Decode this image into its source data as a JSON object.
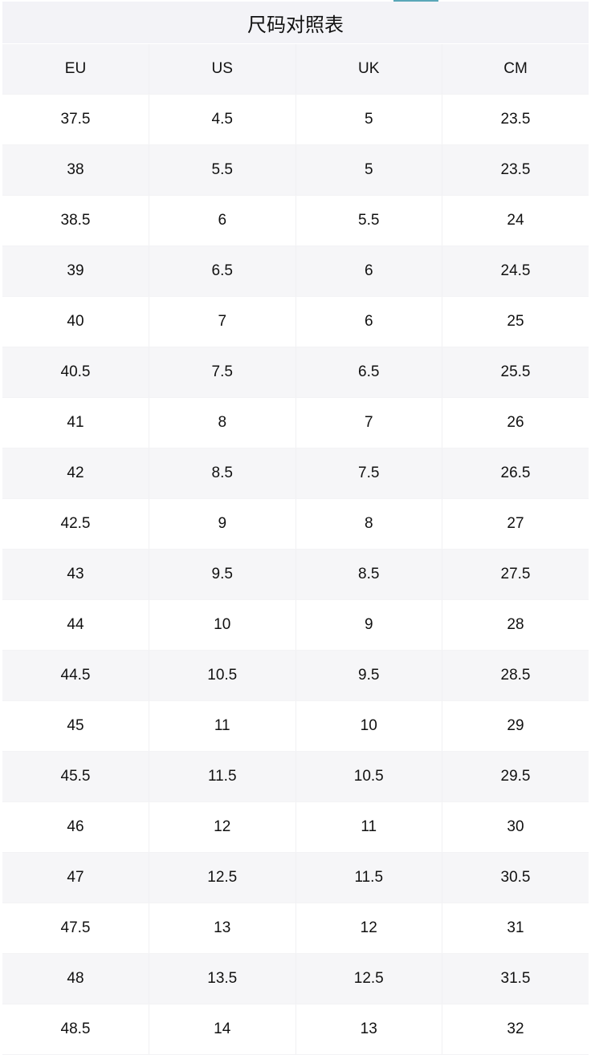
{
  "title": "尺码对照表",
  "accent_color": "#5aa7b8",
  "headers": [
    "EU",
    "US",
    "UK",
    "CM"
  ],
  "rows": [
    [
      "37.5",
      "4.5",
      "5",
      "23.5"
    ],
    [
      "38",
      "5.5",
      "5",
      "23.5"
    ],
    [
      "38.5",
      "6",
      "5.5",
      "24"
    ],
    [
      "39",
      "6.5",
      "6",
      "24.5"
    ],
    [
      "40",
      "7",
      "6",
      "25"
    ],
    [
      "40.5",
      "7.5",
      "6.5",
      "25.5"
    ],
    [
      "41",
      "8",
      "7",
      "26"
    ],
    [
      "42",
      "8.5",
      "7.5",
      "26.5"
    ],
    [
      "42.5",
      "9",
      "8",
      "27"
    ],
    [
      "43",
      "9.5",
      "8.5",
      "27.5"
    ],
    [
      "44",
      "10",
      "9",
      "28"
    ],
    [
      "44.5",
      "10.5",
      "9.5",
      "28.5"
    ],
    [
      "45",
      "11",
      "10",
      "29"
    ],
    [
      "45.5",
      "11.5",
      "10.5",
      "29.5"
    ],
    [
      "46",
      "12",
      "11",
      "30"
    ],
    [
      "47",
      "12.5",
      "11.5",
      "30.5"
    ],
    [
      "47.5",
      "13",
      "12",
      "31"
    ],
    [
      "48",
      "13.5",
      "12.5",
      "31.5"
    ],
    [
      "48.5",
      "14",
      "13",
      "32"
    ]
  ]
}
